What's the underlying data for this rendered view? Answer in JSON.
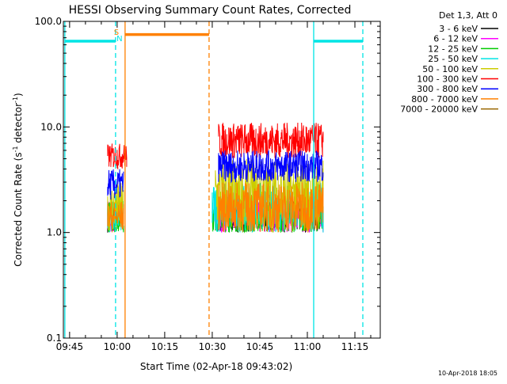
{
  "chart_data": {
    "type": "line",
    "title": "HESSI Observing Summary Count Rates, Corrected",
    "xlabel": "Start Time (02-Apr-18 09:43:02)",
    "ylabel_main": "Corrected Count Rate (s",
    "ylabel_sup1": "-1",
    "ylabel_mid": " detector",
    "ylabel_sup2": "-1",
    "ylabel_end": ")",
    "y_scale": "log",
    "ylim": [
      0.1,
      100.0
    ],
    "xlim": [
      "09:43:02",
      "11:23:00"
    ],
    "x_ticks": [
      "09:45",
      "10:00",
      "10:15",
      "10:30",
      "10:45",
      "11:00",
      "11:15"
    ],
    "y_ticks": [
      "0.1",
      "1.0",
      "10.0",
      "100.0"
    ],
    "legend_title": "Det 1,3, Att 0",
    "legend_position": "outside-right",
    "series": [
      {
        "name": "3 - 6 keV",
        "color": "#000000",
        "segments": [
          {
            "t0": "09:57",
            "t1": "10:00",
            "lo": 1.0,
            "hi": 2.0
          },
          {
            "t0": "10:31",
            "t1": "11:05",
            "lo": 1.0,
            "hi": 2.0
          }
        ]
      },
      {
        "name": "6 - 12 keV",
        "color": "#ff00ff",
        "segments": [
          {
            "t0": "09:57",
            "t1": "10:00",
            "lo": 1.0,
            "hi": 2.0
          },
          {
            "t0": "10:31",
            "t1": "11:05",
            "lo": 1.0,
            "hi": 2.0
          }
        ]
      },
      {
        "name": "12 - 25 keV",
        "color": "#00cc00",
        "segments": [
          {
            "t0": "09:57",
            "t1": "10:02",
            "lo": 1.0,
            "hi": 2.0
          },
          {
            "t0": "10:30",
            "t1": "11:05",
            "lo": 1.0,
            "hi": 2.0
          }
        ]
      },
      {
        "name": "25 - 50 keV",
        "color": "#00e5e5",
        "segments": [
          {
            "t0": "09:57",
            "t1": "10:02",
            "lo": 1.0,
            "hi": 2.0
          },
          {
            "t0": "10:30",
            "t1": "11:05",
            "lo": 1.0,
            "hi": 3.0
          }
        ]
      },
      {
        "name": "50 - 100 keV",
        "color": "#cccc00",
        "segments": [
          {
            "t0": "09:57",
            "t1": "10:02",
            "lo": 1.0,
            "hi": 3.0
          },
          {
            "t0": "10:31",
            "t1": "11:05",
            "lo": 1.0,
            "hi": 5.0
          }
        ]
      },
      {
        "name": "100 - 300 keV",
        "color": "#ff0000",
        "segments": [
          {
            "t0": "09:57",
            "t1": "10:03",
            "lo": 4.0,
            "hi": 7.0
          },
          {
            "t0": "10:32",
            "t1": "11:05",
            "lo": 5.0,
            "hi": 11.0
          }
        ]
      },
      {
        "name": "300 - 800 keV",
        "color": "#0000ff",
        "segments": [
          {
            "t0": "09:57",
            "t1": "10:02",
            "lo": 2.0,
            "hi": 4.0
          },
          {
            "t0": "10:32",
            "t1": "11:05",
            "lo": 3.0,
            "hi": 6.0
          }
        ]
      },
      {
        "name": "800 - 7000 keV",
        "color": "#ff8000",
        "segments": [
          {
            "t0": "09:57",
            "t1": "10:02",
            "lo": 1.0,
            "hi": 2.0
          },
          {
            "t0": "10:32",
            "t1": "11:05",
            "lo": 1.0,
            "hi": 3.0
          }
        ]
      },
      {
        "name": "7000 - 20000 keV",
        "color": "#996600",
        "segments": []
      }
    ],
    "annotations": [
      {
        "type": "vline",
        "time": "09:43:30",
        "color": "#00e5e5",
        "style": "solid"
      },
      {
        "type": "vline",
        "time": "09:59:30",
        "color": "#00e5e5",
        "style": "dashed"
      },
      {
        "type": "vline",
        "time": "10:02:30",
        "color": "#ff8000",
        "style": "solid"
      },
      {
        "type": "vline",
        "time": "10:29:00",
        "color": "#ff8000",
        "style": "dashed"
      },
      {
        "type": "vline",
        "time": "11:02:00",
        "color": "#00e5e5",
        "style": "solid"
      },
      {
        "type": "vline",
        "time": "11:17:30",
        "color": "#00e5e5",
        "style": "dashed"
      },
      {
        "type": "hbar",
        "t0": "09:43:30",
        "t1": "09:59:30",
        "value": 65,
        "color": "#00e5e5"
      },
      {
        "type": "hbar",
        "t0": "10:02:30",
        "t1": "10:29:00",
        "value": 75,
        "color": "#ff8000"
      },
      {
        "type": "hbar",
        "t0": "11:02:00",
        "t1": "11:17:30",
        "value": 65,
        "color": "#00e5e5"
      }
    ],
    "markers": [
      {
        "label": "S",
        "time": "09:59:30",
        "color": "#ff8000"
      },
      {
        "label": "N",
        "time": "10:00:30",
        "color": "#00e5e5"
      }
    ],
    "footer_timestamp": "10-Apr-2018 18:05"
  }
}
